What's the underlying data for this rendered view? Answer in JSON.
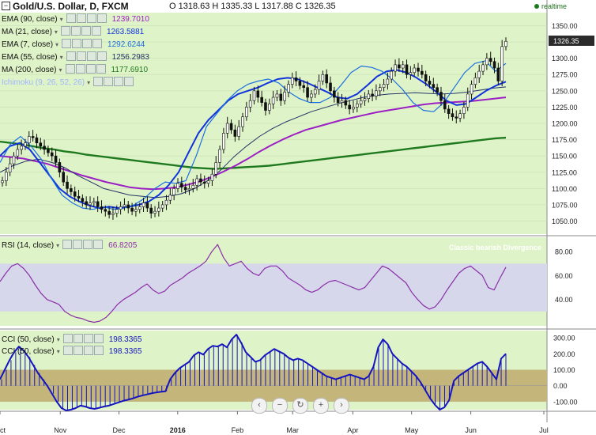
{
  "header": {
    "title": "Gold/U.S. Dollar, D, FXCM",
    "ohlc": "O 1318.63  H 1335.33  L 1317.88  C 1326.35",
    "realtime": "realtime"
  },
  "price_tag": "1326.35",
  "indicators": [
    {
      "name": "EMA (90, close)",
      "value": "1239.7010",
      "color": "#9b1fc4"
    },
    {
      "name": "MA (21, close)",
      "value": "1263.5881",
      "color": "#1133dd"
    },
    {
      "name": "EMA (7, close)",
      "value": "1292.6244",
      "color": "#1a6fe0"
    },
    {
      "name": "EMA (55, close)",
      "value": "1256.2983",
      "color": "#223366"
    },
    {
      "name": "MA (200, close)",
      "value": "1177.6910",
      "color": "#1f7a1f"
    },
    {
      "name": "Ichimoku (9, 26, 52, 26)",
      "value": "",
      "color": "#9fb5ff"
    }
  ],
  "rsi_legend": {
    "name": "RSI (14, close)",
    "value": "66.8205"
  },
  "cci_legends": [
    {
      "name": "CCI (50, close)",
      "value": "198.3365"
    },
    {
      "name": "CCI (50, close)",
      "value": "198.3365"
    }
  ],
  "annotation": "Classic bearish Divergence",
  "nav_buttons": [
    "‹",
    "−",
    "↻",
    "+",
    "›"
  ],
  "colors": {
    "panel_bg": "#dff3c8",
    "rsi_band": "#d6d7ea",
    "cci_band": "#c4b57a",
    "rsi_line": "#8b2fa8",
    "cci_line": "#1515c0",
    "ma200": "#1f7a1f",
    "ema90": "#9b1fc4",
    "ma21": "#1133dd",
    "ema7": "#1a6fe0",
    "ema55": "#223366"
  },
  "chart_data": [
    {
      "type": "candlestick",
      "ylim": [
        1030,
        1370
      ],
      "yticks": [
        1050,
        1075,
        1100,
        1125,
        1150,
        1175,
        1200,
        1225,
        1250,
        1275,
        1300,
        1325,
        1350
      ],
      "xticks": [
        {
          "label": "Oct",
          "t": 0
        },
        {
          "label": "Nov",
          "t": 0.118
        },
        {
          "label": "Dec",
          "t": 0.233
        },
        {
          "label": "2016",
          "t": 0.348
        },
        {
          "label": "Feb",
          "t": 0.465
        },
        {
          "label": "Mar",
          "t": 0.573
        },
        {
          "label": "Apr",
          "t": 0.691
        },
        {
          "label": "May",
          "t": 0.806
        },
        {
          "label": "Jun",
          "t": 0.922
        },
        {
          "label": "Jul",
          "t": 1.065
        }
      ],
      "close": [
        1112,
        1125,
        1138,
        1150,
        1160,
        1165,
        1170,
        1180,
        1178,
        1170,
        1165,
        1160,
        1155,
        1150,
        1140,
        1125,
        1110,
        1100,
        1095,
        1088,
        1085,
        1080,
        1075,
        1078,
        1080,
        1072,
        1068,
        1065,
        1060,
        1062,
        1068,
        1072,
        1075,
        1070,
        1065,
        1068,
        1072,
        1078,
        1070,
        1062,
        1065,
        1070,
        1075,
        1082,
        1090,
        1100,
        1108,
        1102,
        1098,
        1100,
        1105,
        1115,
        1110,
        1108,
        1112,
        1122,
        1140,
        1160,
        1185,
        1200,
        1190,
        1180,
        1195,
        1210,
        1225,
        1235,
        1250,
        1240,
        1232,
        1220,
        1230,
        1240,
        1245,
        1235,
        1248,
        1260,
        1270,
        1265,
        1258,
        1255,
        1240,
        1245,
        1252,
        1265,
        1275,
        1262,
        1250,
        1240,
        1232,
        1235,
        1228,
        1222,
        1225,
        1230,
        1235,
        1238,
        1245,
        1242,
        1250,
        1255,
        1260,
        1268,
        1280,
        1290,
        1285,
        1290,
        1275,
        1278,
        1285,
        1280,
        1275,
        1265,
        1260,
        1255,
        1248,
        1235,
        1222,
        1215,
        1210,
        1208,
        1215,
        1225,
        1245,
        1260,
        1270,
        1280,
        1290,
        1300,
        1295,
        1285,
        1265,
        1318,
        1326
      ],
      "ma200": [
        1172,
        1170,
        1168,
        1165,
        1162,
        1160,
        1157,
        1155,
        1152,
        1150,
        1148,
        1146,
        1144,
        1142,
        1140,
        1138,
        1136,
        1134,
        1132,
        1131,
        1130,
        1131,
        1132,
        1133,
        1134,
        1135,
        1137,
        1139,
        1141,
        1143,
        1145,
        1147,
        1149,
        1151,
        1153,
        1155,
        1157,
        1159,
        1161,
        1163,
        1165,
        1167,
        1169,
        1171,
        1173,
        1175,
        1177,
        1178
      ],
      "ema90": [
        1150,
        1148,
        1146,
        1142,
        1138,
        1132,
        1126,
        1120,
        1115,
        1110,
        1106,
        1102,
        1100,
        1099,
        1100,
        1102,
        1106,
        1111,
        1118,
        1126,
        1135,
        1145,
        1156,
        1166,
        1175,
        1183,
        1190,
        1195,
        1200,
        1205,
        1209,
        1213,
        1217,
        1220,
        1223,
        1226,
        1229,
        1231,
        1232,
        1233,
        1234,
        1236,
        1238,
        1240
      ],
      "ma21": [
        1150,
        1165,
        1170,
        1160,
        1140,
        1120,
        1100,
        1088,
        1080,
        1074,
        1070,
        1072,
        1070,
        1072,
        1075,
        1080,
        1090,
        1105,
        1125,
        1155,
        1185,
        1205,
        1220,
        1235,
        1245,
        1250,
        1255,
        1262,
        1268,
        1270,
        1268,
        1262,
        1255,
        1248,
        1240,
        1238,
        1245,
        1258,
        1272,
        1280,
        1282,
        1278,
        1270,
        1260,
        1248,
        1235,
        1228,
        1230,
        1240,
        1250,
        1258,
        1264
      ],
      "ema7": [
        1140,
        1168,
        1180,
        1165,
        1145,
        1115,
        1090,
        1078,
        1070,
        1068,
        1072,
        1068,
        1070,
        1075,
        1085,
        1100,
        1110,
        1108,
        1112,
        1150,
        1195,
        1215,
        1235,
        1250,
        1260,
        1265,
        1268,
        1262,
        1248,
        1238,
        1232,
        1232,
        1240,
        1258,
        1278,
        1288,
        1286,
        1280,
        1268,
        1252,
        1232,
        1220,
        1218,
        1232,
        1255,
        1278,
        1292,
        1296,
        1280,
        1292
      ],
      "ema55": [
        1125,
        1135,
        1142,
        1145,
        1140,
        1132,
        1120,
        1110,
        1100,
        1095,
        1090,
        1088,
        1086,
        1088,
        1092,
        1100,
        1112,
        1128,
        1148,
        1165,
        1180,
        1192,
        1202,
        1210,
        1218,
        1224,
        1230,
        1235,
        1240,
        1243,
        1245,
        1246,
        1247,
        1246,
        1245,
        1246,
        1248,
        1251,
        1254,
        1256
      ]
    },
    {
      "type": "line",
      "title": "RSI (14, close)",
      "ylim": [
        18,
        92
      ],
      "yticks": [
        40,
        60,
        80
      ],
      "band": [
        30,
        70
      ],
      "values": [
        55,
        62,
        68,
        70,
        66,
        60,
        52,
        45,
        40,
        38,
        36,
        30,
        27,
        25,
        24,
        22,
        21,
        22,
        25,
        30,
        36,
        40,
        43,
        46,
        50,
        53,
        48,
        45,
        47,
        52,
        55,
        58,
        62,
        65,
        68,
        72,
        80,
        86,
        75,
        68,
        70,
        72,
        66,
        62,
        60,
        66,
        68,
        68,
        64,
        58,
        55,
        52,
        48,
        46,
        48,
        52,
        55,
        56,
        54,
        52,
        50,
        48,
        50,
        56,
        62,
        68,
        66,
        62,
        58,
        54,
        46,
        40,
        35,
        32,
        34,
        40,
        48,
        55,
        62,
        66,
        68,
        64,
        60,
        50,
        48,
        58,
        67
      ]
    },
    {
      "type": "histogram",
      "title": "CCI (50, close)",
      "ylim": [
        -150,
        345
      ],
      "yticks": [
        -100,
        0,
        100,
        200,
        300
      ],
      "band": [
        -100,
        100
      ],
      "values": [
        40,
        100,
        160,
        210,
        245,
        220,
        180,
        130,
        80,
        40,
        0,
        -50,
        -100,
        -140,
        -155,
        -150,
        -140,
        -125,
        -130,
        -140,
        -145,
        -138,
        -130,
        -125,
        -115,
        -105,
        -95,
        -88,
        -80,
        -70,
        -62,
        -55,
        -48,
        -42,
        -38,
        -35,
        40,
        80,
        110,
        130,
        150,
        190,
        210,
        195,
        230,
        250,
        245,
        260,
        240,
        290,
        320,
        270,
        210,
        180,
        150,
        160,
        190,
        210,
        230,
        215,
        200,
        175,
        160,
        170,
        160,
        140,
        120,
        100,
        80,
        60,
        50,
        40,
        50,
        60,
        70,
        60,
        50,
        40,
        60,
        120,
        240,
        290,
        260,
        200,
        170,
        140,
        120,
        90,
        60,
        20,
        -30,
        -80,
        -120,
        -150,
        -135,
        -90,
        30,
        60,
        80,
        100,
        120,
        140,
        150,
        120,
        80,
        40,
        170,
        200
      ]
    }
  ]
}
